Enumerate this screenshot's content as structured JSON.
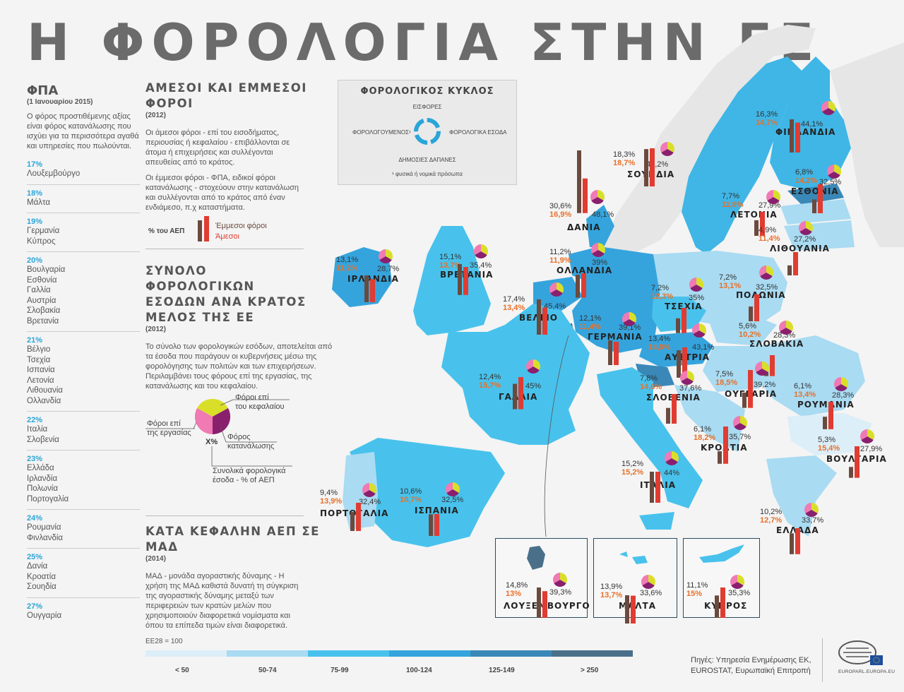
{
  "title": "Η ΦΟΡΟΛΟΓΙΑ ΣΤΗΝ ΕΕ",
  "vat": {
    "heading": "ΦΠΑ",
    "date": "(1 Ιανουαρίου 2015)",
    "description": "Ο φόρος προστιθέμενης αξίας είναι φόρος κατανάλωσης που ισχύει για τα περισσότερα αγαθά και υπηρεσίες που πωλούνται.",
    "groups": [
      {
        "rate": "17%",
        "countries": [
          "Λουξεμβούργο"
        ]
      },
      {
        "rate": "18%",
        "countries": [
          "Μάλτα"
        ]
      },
      {
        "rate": "19%",
        "countries": [
          "Γερμανία",
          "Κύπρος"
        ]
      },
      {
        "rate": "20%",
        "countries": [
          "Βουλγαρία",
          "Εσθονία",
          "Γαλλία",
          "Αυστρία",
          "Σλοβακία",
          "Βρετανία"
        ]
      },
      {
        "rate": "21%",
        "countries": [
          "Βέλγιο",
          "Τσεχία",
          "Ισπανία",
          "Λετονία",
          "Λιθουανία",
          "Ολλανδία"
        ]
      },
      {
        "rate": "22%",
        "countries": [
          "Ιταλία",
          "Σλοβενία"
        ]
      },
      {
        "rate": "23%",
        "countries": [
          "Ελλάδα",
          "Ιρλανδία",
          "Πολωνία",
          "Πορτογαλία"
        ]
      },
      {
        "rate": "24%",
        "countries": [
          "Ρουμανία",
          "Φινλανδία"
        ]
      },
      {
        "rate": "25%",
        "countries": [
          "Δανία",
          "Κροατία",
          "Σουηδία"
        ]
      },
      {
        "rate": "27%",
        "countries": [
          "Ουγγαρία"
        ]
      }
    ]
  },
  "direct_indirect": {
    "title_line1": "ΑΜΕΣΟΙ ΚΑΙ ΕΜΜΕΣΟΙ",
    "title_line2": "ΦΟΡΟΙ",
    "year": "(2012)",
    "para1": "Οι άμεσοι φόροι - επί του εισοδήματος, περιουσίας ή κεφαλαίου - επιβάλλονται σε άτομα ή επιχειρήσεις και συλλέγονται απευθείας από το κράτος.",
    "para2": "Οι έμμεσοι φόροι - ΦΠΑ, ειδικοί φόροι κατανάλωσης - στοχεύουν στην κατανάλωση και συλλέγονται από το κράτος από έναν ενδιάμεσο, π.χ καταστήματα.",
    "legend_label": "% του ΑΕΠ",
    "legend_indirect": "Έμμεσοι φόροι",
    "legend_direct": "Άμεσοι"
  },
  "total_revenue": {
    "title_line1": "ΣΥΝΟΛΟ ΦΟΡΟΛΟΓΙΚΩΝ",
    "title_line2": "ΕΣΟΔΩΝ ΑΝΑ ΚΡΑΤΟΣ",
    "title_line3": "ΜΕΛΟΣ ΤΗΣ ΕΕ",
    "year": "(2012)",
    "text": "Το σύνολο των φορολογικών εσόδων, αποτελείται από τα έσοδα που παράγουν οι κυβερνήσεις μέσω της φορολόγησης των πολιτών και των επιχειρήσεων. Περιλαμβάνει τους φόρους επί της εργασίας, της κατανάλωσης και του κεφαλαίου.",
    "pie_capital_1": "Φόροι επί",
    "pie_capital_2": "του κεφαλαίου",
    "pie_labour_1": "Φόροι επί",
    "pie_labour_2": "της εργασίας",
    "pie_consumption_1": "Φόρος",
    "pie_consumption_2": "κατανάλωσης",
    "pie_center": "X%",
    "pie_total_1": "Συνολικά φορολογικά",
    "pie_total_2": "έσοδα - % of ΑΕΠ"
  },
  "gdp": {
    "title_line1": "ΚΑΤΑ ΚΕΦΑΛΗΝ ΑΕΠ ΣΕ",
    "title_line2": "ΜΑΔ",
    "year": "(2014)",
    "text": "ΜΑΔ - μονάδα αγοραστικής δύναμης - Η χρήση της ΜΑΔ καθιστά δυνατή τη σύγκριση της αγοραστικής δύναμης μεταξύ των περιφερειών των κρατών μελών που χρησιμοποιούν διαφορετικά νομίσματα και όπου τα επίπεδα τιμών είναι διαφορετικά.",
    "base": "EE28 = 100",
    "legend": [
      "< 50",
      "50-74",
      "75-99",
      "100-124",
      "125-149",
      "> 250"
    ],
    "legend_colors": [
      "#dceef8",
      "#a9dbf2",
      "#48c2ec",
      "#35a4dd",
      "#3a88b8",
      "#4a7089"
    ]
  },
  "tax_cycle": {
    "title": "ΦΟΡΟΛΟΓΙΚΟΣ ΚΥΚΛΟΣ",
    "top": "ΕΙΣΦΟΡΕΣ",
    "left": "ΦΟΡΟΛΟΓΟΥΜΕΝΟΣ¹",
    "right": "ΦΟΡΟΛΟΓΙΚΑ ΕΣΟΔΑ",
    "bottom": "ΔΗΜΟΣΙΕΣ ΔΑΠΑΝΕΣ",
    "footnote": "¹ φυσικά ή νομικά πρόσωπα"
  },
  "countries": [
    {
      "name": "ΦΙΝΛΑΝΔΙΑ",
      "indirect": "16,3%",
      "direct": "14,7%",
      "total": "44,1%"
    },
    {
      "name": "ΣΟΥΗΔΙΑ",
      "indirect": "18,3%",
      "direct": "18,7%",
      "total": "44,2%"
    },
    {
      "name": "ΕΣΘΟΝΙΑ",
      "indirect": "6,8%",
      "direct": "14,2%",
      "total": "32,5%"
    },
    {
      "name": "ΛΕΤΟΝΙΑ",
      "indirect": "7,7%",
      "direct": "11,8%",
      "total": "27,9%"
    },
    {
      "name": "ΛΙΘΟΥΑΝΙΑ",
      "indirect": "4,9%",
      "direct": "11,4%",
      "total": "27,2%"
    },
    {
      "name": "ΔΑΝΙΑ",
      "indirect": "30,6%",
      "direct": "16,9%",
      "total": "48,1%"
    },
    {
      "name": "ΙΡΛΑΝΔΙΑ",
      "indirect": "13,1%",
      "direct": "11,2%",
      "total": "28,7%"
    },
    {
      "name": "ΒΡΕΤΑΝΙΑ",
      "indirect": "15,1%",
      "direct": "13,7%",
      "total": "35,4%"
    },
    {
      "name": "ΟΛΛΑΝΔΙΑ",
      "indirect": "11,2%",
      "direct": "11,9%",
      "total": "39%"
    },
    {
      "name": "ΠΟΛΩΝΙΑ",
      "indirect": "7,2%",
      "direct": "13,1%",
      "total": "32,5%"
    },
    {
      "name": "ΒΕΛΓΙΟ",
      "indirect": "17,4%",
      "direct": "13,4%",
      "total": "45,4%"
    },
    {
      "name": "ΓΕΡΜΑΝΙΑ",
      "indirect": "12,1%",
      "direct": "11,4%",
      "total": "39,1%"
    },
    {
      "name": "ΤΣΕΧΙΑ",
      "indirect": "7,2%",
      "direct": "12,3%",
      "total": "35%"
    },
    {
      "name": "ΣΛΟΒΑΚΙΑ",
      "indirect": "5,6%",
      "direct": "10,2%",
      "total": "28,3%"
    },
    {
      "name": "ΑΥΣΤΡΙΑ",
      "indirect": "13,4%",
      "direct": "14,8%",
      "total": "43,1%"
    },
    {
      "name": "ΓΑΛΛΙΑ",
      "indirect": "12,4%",
      "direct": "15,7%",
      "total": "45%"
    },
    {
      "name": "ΟΥΓΓΑΡΙΑ",
      "indirect": "7,5%",
      "direct": "18,5%",
      "total": "39,2%"
    },
    {
      "name": "ΣΛΟΒΕΝΙΑ",
      "indirect": "7,8%",
      "direct": "14,6%",
      "total": "37,6%"
    },
    {
      "name": "ΡΟΥΜΑΝΙΑ",
      "indirect": "6,1%",
      "direct": "13,4%",
      "total": "28,3%"
    },
    {
      "name": "ΚΡΟΑΤΙΑ",
      "indirect": "6,1%",
      "direct": "18,2%",
      "total": "35,7%"
    },
    {
      "name": "ΒΟΥΛΓΑΡΙΑ",
      "indirect": "5,3%",
      "direct": "15,4%",
      "total": "27,9%"
    },
    {
      "name": "ΙΤΑΛΙΑ",
      "indirect": "15,2%",
      "direct": "15,2%",
      "total": "44%"
    },
    {
      "name": "ΠΟΡΤΟΓΑΛΙΑ",
      "indirect": "9,4%",
      "direct": "13,9%",
      "total": "32,4%"
    },
    {
      "name": "ΙΣΠΑΝΙΑ",
      "indirect": "10,6%",
      "direct": "10,7%",
      "total": "32,5%"
    },
    {
      "name": "ΕΛΛΑΔΑ",
      "indirect": "10,2%",
      "direct": "12,7%",
      "total": "33,7%"
    },
    {
      "name": "ΛΟΥΞΕΜΒΟΥΡΓΟ",
      "indirect": "14,8%",
      "direct": "13%",
      "total": "39,3%"
    },
    {
      "name": "ΜΑΛΤΑ",
      "indirect": "13,9%",
      "direct": "13,7%",
      "total": "33,6%"
    },
    {
      "name": "ΚΥΠΡΟΣ",
      "indirect": "11,1%",
      "direct": "15%",
      "total": "35,3%"
    }
  ],
  "sources": {
    "line1": "Πηγές: Υπηρεσία Ενημέρωσης ΕΚ,",
    "line2": "EUROSTAT, Ευρωπαϊκή Επιτροπή"
  },
  "logo_text": "EUROPARL.EUROPA.EU"
}
